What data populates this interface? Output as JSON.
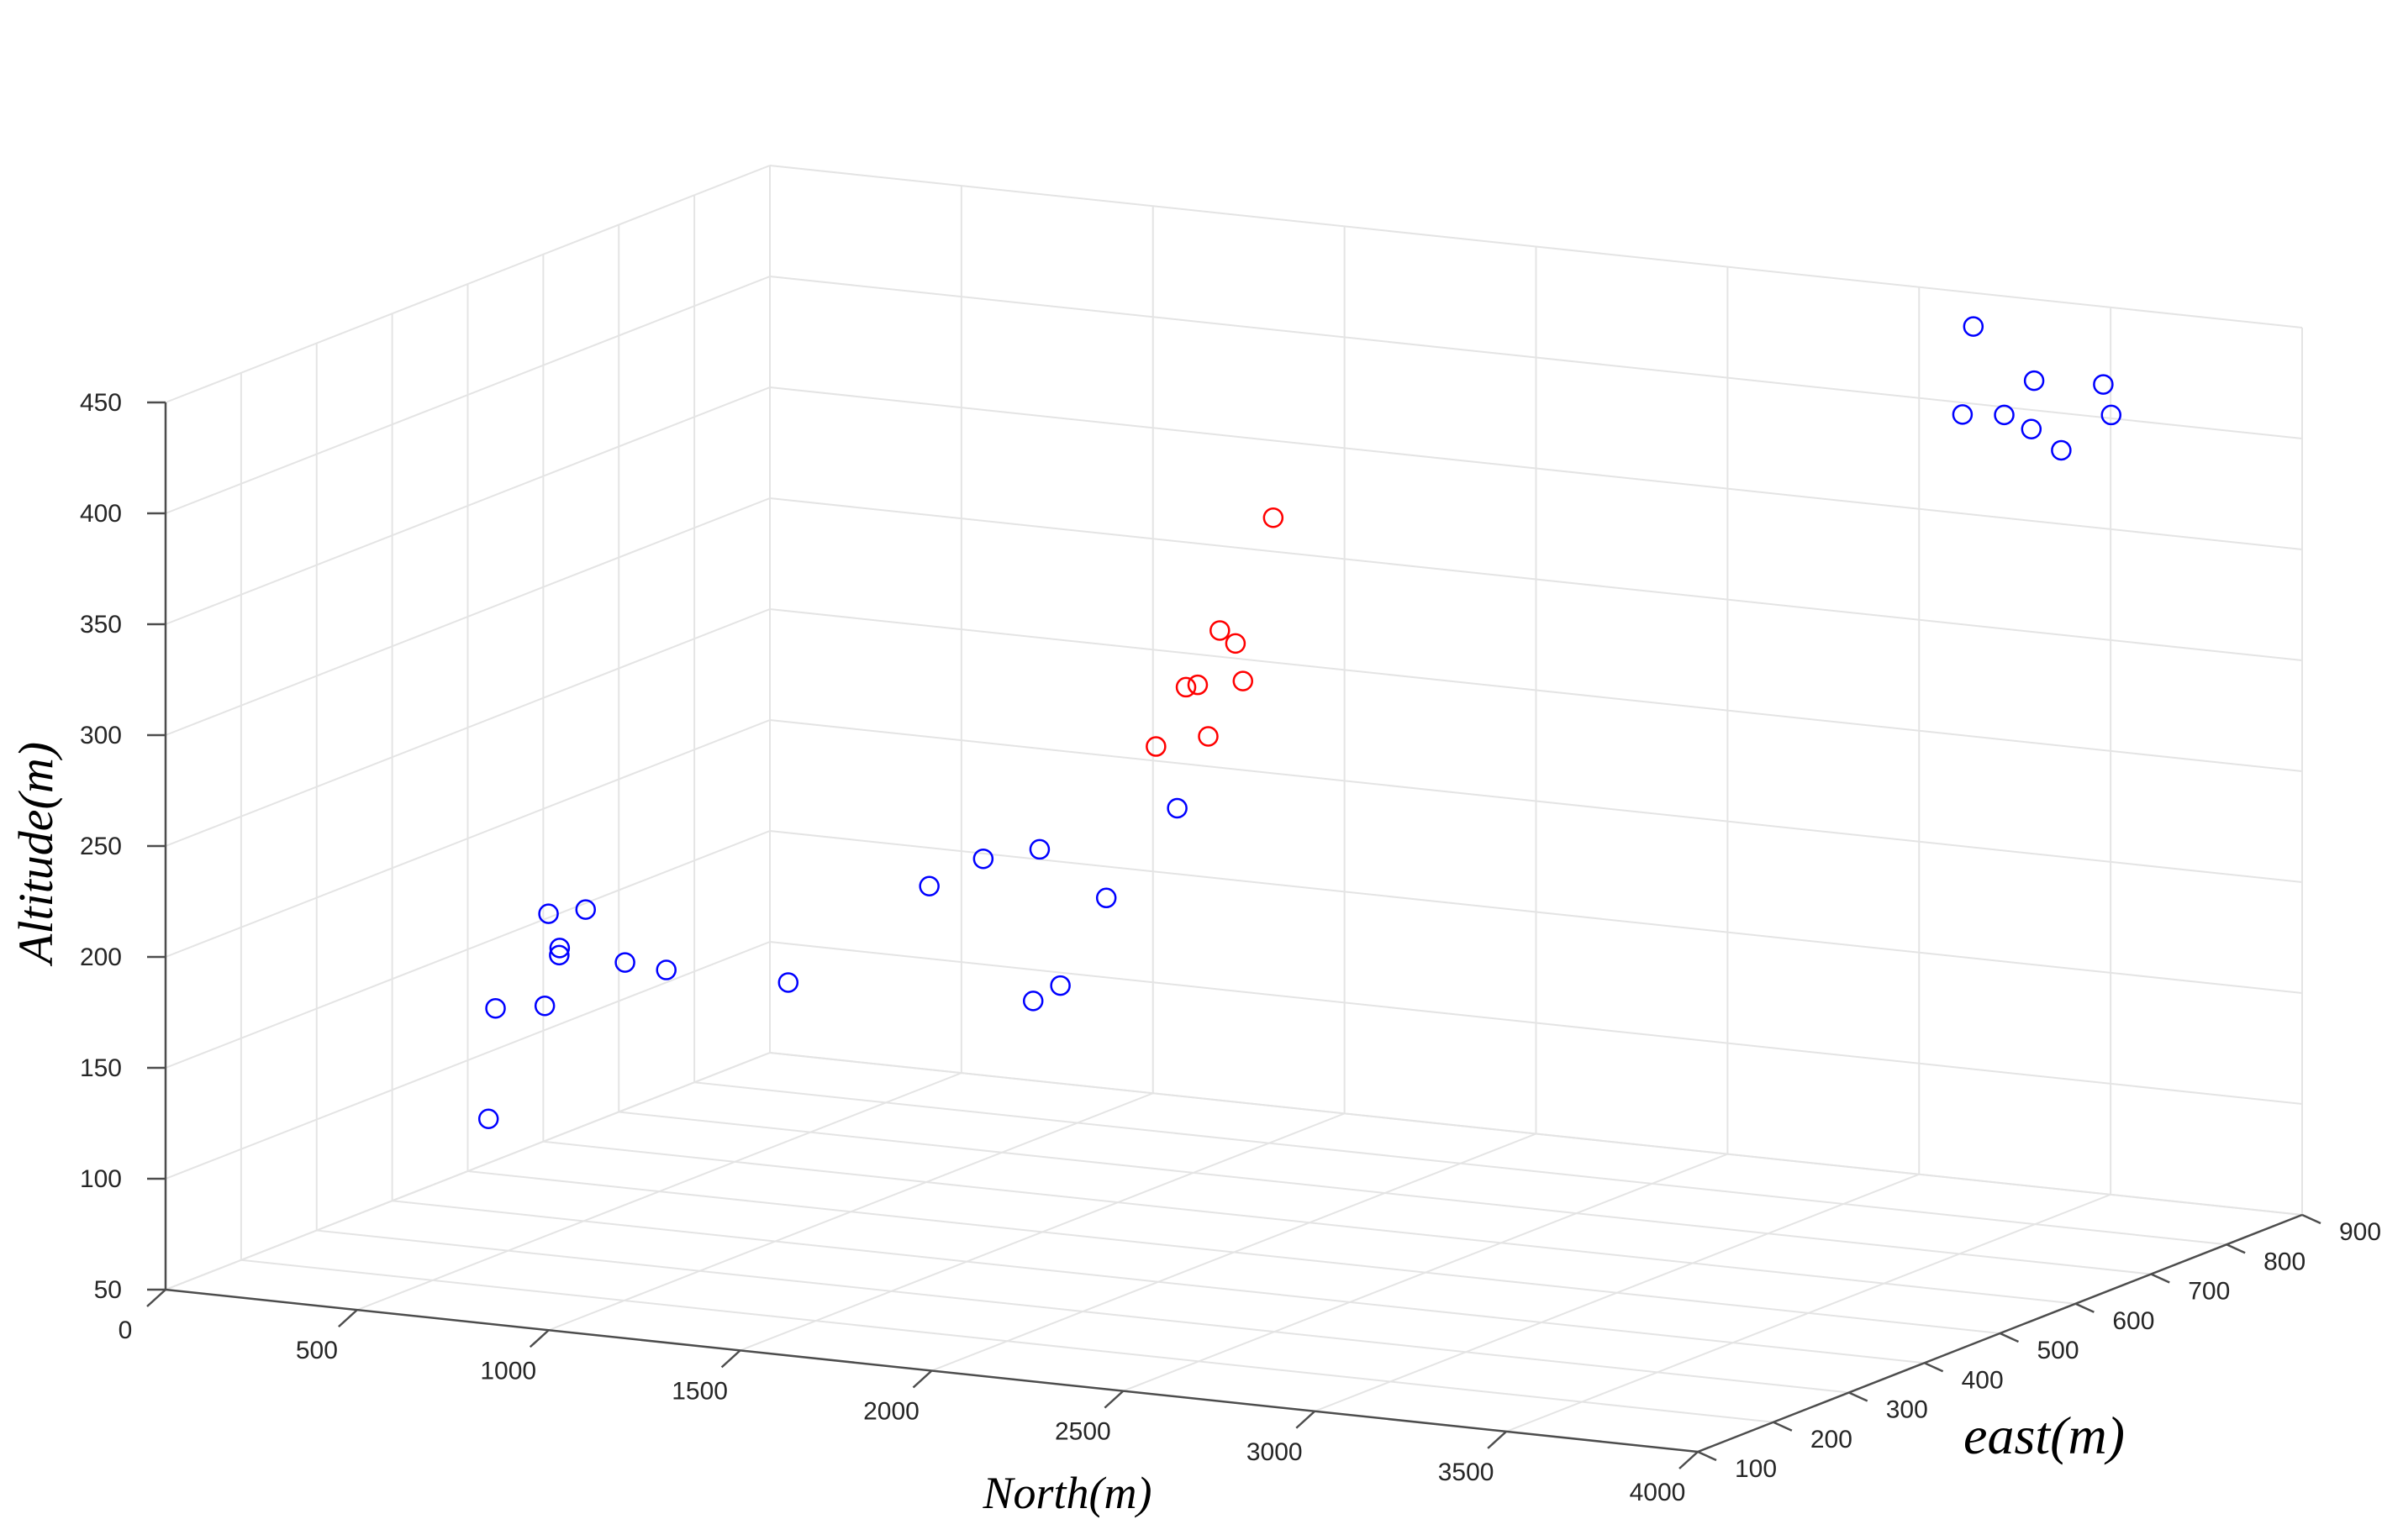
{
  "chart_data": {
    "type": "scatter",
    "title": "",
    "xlabel": "North(m)",
    "ylabel": "east(m)",
    "zlabel": "Altitude(m)",
    "xlim": [
      0,
      4000
    ],
    "ylim": [
      100,
      900
    ],
    "zlim": [
      50,
      450
    ],
    "x_ticks": [
      0,
      500,
      1000,
      1500,
      2000,
      2500,
      3000,
      3500,
      4000
    ],
    "y_ticks": [
      100,
      200,
      300,
      400,
      500,
      600,
      700,
      800,
      900
    ],
    "z_ticks": [
      50,
      100,
      150,
      200,
      250,
      300,
      350,
      400,
      450
    ],
    "grid": true,
    "series": [
      {
        "color": "#0000ff",
        "points": [
          {
            "x": 350,
            "y": 350,
            "z": 100
          },
          {
            "x": 280,
            "y": 460,
            "z": 135
          },
          {
            "x": 270,
            "y": 470,
            "z": 175
          },
          {
            "x": 160,
            "y": 540,
            "z": 145
          },
          {
            "x": 150,
            "y": 580,
            "z": 160
          },
          {
            "x": 240,
            "y": 500,
            "z": 155
          },
          {
            "x": 250,
            "y": 410,
            "z": 140
          },
          {
            "x": 450,
            "y": 480,
            "z": 155
          },
          {
            "x": 400,
            "y": 560,
            "z": 140
          },
          {
            "x": 600,
            "y": 620,
            "z": 130
          },
          {
            "x": 1200,
            "y": 640,
            "z": 130
          },
          {
            "x": 1350,
            "y": 600,
            "z": 145
          },
          {
            "x": 1450,
            "y": 610,
            "z": 185
          },
          {
            "x": 1050,
            "y": 650,
            "z": 190
          },
          {
            "x": 1000,
            "y": 750,
            "z": 180
          },
          {
            "x": 850,
            "y": 680,
            "z": 170
          },
          {
            "x": 1300,
            "y": 780,
            "z": 200
          },
          {
            "x": 3380,
            "y": 820,
            "z": 410
          },
          {
            "x": 3320,
            "y": 890,
            "z": 415
          },
          {
            "x": 3260,
            "y": 840,
            "z": 445
          },
          {
            "x": 3350,
            "y": 780,
            "z": 415
          },
          {
            "x": 3450,
            "y": 860,
            "z": 390
          },
          {
            "x": 3540,
            "y": 870,
            "z": 420
          },
          {
            "x": 3510,
            "y": 790,
            "z": 410
          },
          {
            "x": 3600,
            "y": 850,
            "z": 410
          }
        ]
      },
      {
        "color": "#ff0000",
        "points": [
          {
            "x": 2300,
            "y": 400,
            "z": 400
          },
          {
            "x": 2200,
            "y": 380,
            "z": 350
          },
          {
            "x": 2300,
            "y": 300,
            "z": 338
          },
          {
            "x": 2300,
            "y": 350,
            "z": 350
          },
          {
            "x": 2270,
            "y": 260,
            "z": 315
          },
          {
            "x": 2280,
            "y": 370,
            "z": 330
          },
          {
            "x": 2230,
            "y": 320,
            "z": 333
          },
          {
            "x": 2150,
            "y": 390,
            "z": 300
          }
        ]
      }
    ]
  }
}
